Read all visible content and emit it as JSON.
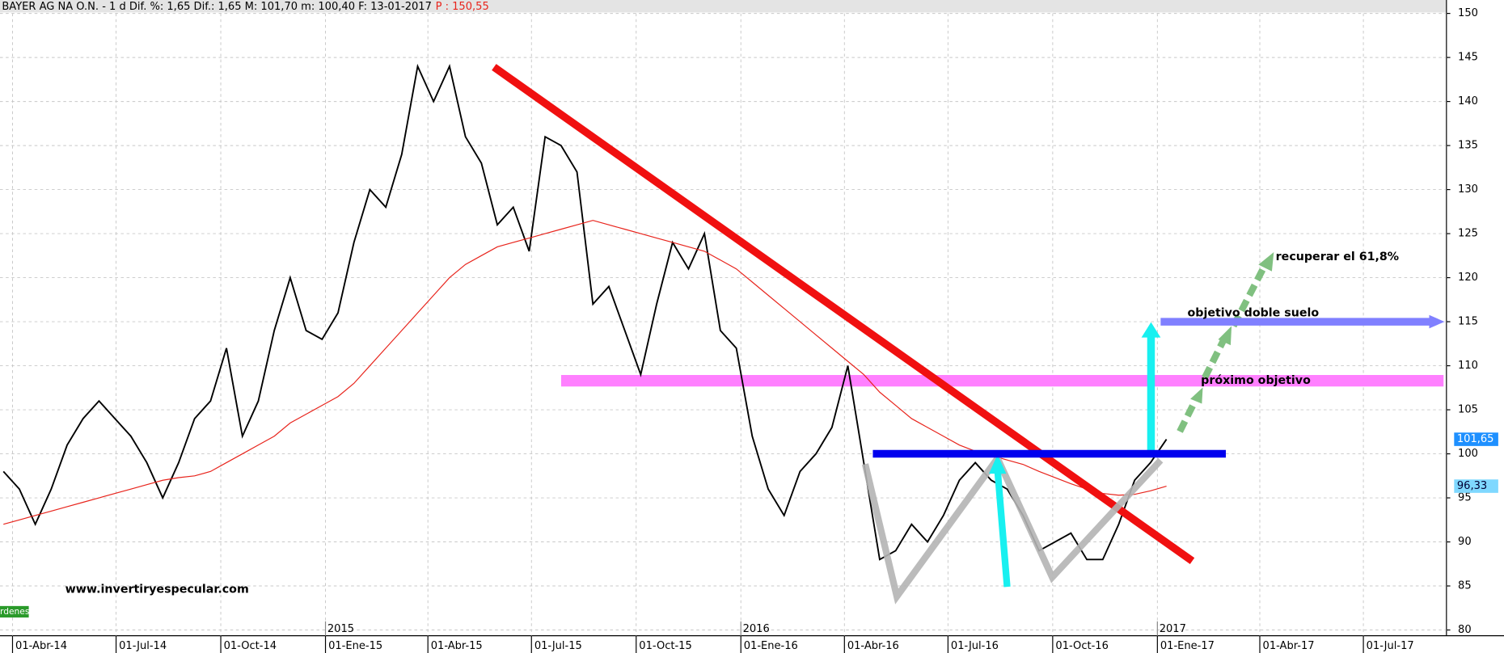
{
  "chart_data": {
    "type": "line",
    "title": "BAYER AG NA O.N. -  1 d Dif. %: 1,65 Dif.: 1,65 M: 101,70 m: 100,40 F: 13-01-2017",
    "subtitle": "P : 150,55",
    "x": [
      "2014-03-24",
      "2014-04-07",
      "2014-04-21",
      "2014-05-05",
      "2014-05-19",
      "2014-06-02",
      "2014-06-16",
      "2014-06-30",
      "2014-07-14",
      "2014-07-28",
      "2014-08-11",
      "2014-08-25",
      "2014-09-08",
      "2014-09-22",
      "2014-10-06",
      "2014-10-20",
      "2014-11-03",
      "2014-11-17",
      "2014-12-01",
      "2014-12-15",
      "2014-12-29",
      "2015-01-12",
      "2015-01-26",
      "2015-02-09",
      "2015-02-23",
      "2015-03-09",
      "2015-03-23",
      "2015-04-06",
      "2015-04-20",
      "2015-05-04",
      "2015-05-18",
      "2015-06-01",
      "2015-06-15",
      "2015-06-29",
      "2015-07-13",
      "2015-07-27",
      "2015-08-10",
      "2015-08-24",
      "2015-09-07",
      "2015-09-21",
      "2015-10-05",
      "2015-10-19",
      "2015-11-02",
      "2015-11-16",
      "2015-11-30",
      "2015-12-14",
      "2015-12-28",
      "2016-01-11",
      "2016-01-25",
      "2016-02-08",
      "2016-02-22",
      "2016-03-07",
      "2016-03-21",
      "2016-04-04",
      "2016-04-18",
      "2016-05-02",
      "2016-05-16",
      "2016-05-30",
      "2016-06-13",
      "2016-06-27",
      "2016-07-11",
      "2016-07-25",
      "2016-08-08",
      "2016-08-22",
      "2016-09-05",
      "2016-09-19",
      "2016-10-03",
      "2016-10-17",
      "2016-10-31",
      "2016-11-14",
      "2016-11-28",
      "2016-12-12",
      "2016-12-26",
      "2017-01-09"
    ],
    "series": [
      {
        "color": "#000000",
        "values": [
          98,
          96,
          92,
          96,
          101,
          104,
          106,
          104,
          102,
          99,
          95,
          99,
          104,
          106,
          112,
          102,
          106,
          114,
          120,
          114,
          113,
          116,
          124,
          130,
          128,
          134,
          144,
          140,
          144,
          136,
          133,
          126,
          128,
          123,
          136,
          135,
          132,
          117,
          119,
          114,
          109,
          117,
          124,
          121,
          125,
          114,
          112,
          102,
          96,
          93,
          98,
          100,
          103,
          110,
          99,
          88,
          89,
          92,
          90,
          93,
          97,
          99,
          97,
          96,
          93,
          89,
          90,
          91,
          88,
          88,
          92,
          97,
          99,
          101.65
        ]
      },
      {
        "color": "#e8241c",
        "values": [
          92,
          92.5,
          93,
          93.5,
          94,
          94.5,
          95,
          95.5,
          96,
          96.5,
          97,
          97.3,
          97.5,
          98,
          99,
          100,
          101,
          102,
          103.5,
          104.5,
          105.5,
          106.5,
          108,
          110,
          112,
          114,
          116,
          118,
          120,
          121.5,
          122.5,
          123.5,
          124,
          124.5,
          125,
          125.5,
          126,
          126.5,
          126,
          125.5,
          125,
          124.5,
          124,
          123.5,
          123,
          122,
          121,
          119.5,
          118,
          116.5,
          115,
          113.5,
          112,
          110.5,
          109,
          107,
          105.5,
          104,
          103,
          102,
          101,
          100.3,
          99.8,
          99.3,
          98.8,
          98,
          97.3,
          96.6,
          96,
          95.5,
          95.3,
          95.4,
          95.8,
          96.33
        ]
      }
    ],
    "xlim": [
      "2014-03-21",
      "2017-09-12"
    ],
    "xticks": [
      {
        "value": "2014-04-01",
        "label": "01-Abr-14"
      },
      {
        "value": "2014-07-01",
        "label": "01-Jul-14"
      },
      {
        "value": "2014-10-01",
        "label": "01-Oct-14"
      },
      {
        "value": "2015-01-01",
        "label": "01-Ene-15"
      },
      {
        "value": "2015-04-01",
        "label": "01-Abr-15"
      },
      {
        "value": "2015-07-01",
        "label": "01-Jul-15"
      },
      {
        "value": "2015-10-01",
        "label": "01-Oct-15"
      },
      {
        "value": "2016-01-01",
        "label": "01-Ene-16"
      },
      {
        "value": "2016-04-01",
        "label": "01-Abr-16"
      },
      {
        "value": "2016-07-01",
        "label": "01-Jul-16"
      },
      {
        "value": "2016-10-01",
        "label": "01-Oct-16"
      },
      {
        "value": "2017-01-01",
        "label": "01-Ene-17"
      },
      {
        "value": "2017-04-01",
        "label": "01-Abr-17"
      },
      {
        "value": "2017-07-01",
        "label": "01-Jul-17"
      }
    ],
    "year_ticks": [
      {
        "value": "2015-01-01",
        "label": "2015"
      },
      {
        "value": "2016-01-01",
        "label": "2016"
      },
      {
        "value": "2017-01-01",
        "label": "2017"
      }
    ],
    "ylim": [
      80,
      150
    ],
    "yticks": [
      80,
      85,
      90,
      95,
      100,
      105,
      110,
      115,
      120,
      125,
      130,
      135,
      140,
      145,
      150
    ],
    "grid": true,
    "price_badges": [
      {
        "value": 101.65,
        "label": "101,65",
        "color": "#1e90ff"
      },
      {
        "value": 96.33,
        "label": "96,33",
        "color": "#7fd8ff"
      }
    ],
    "levels": [
      {
        "value": 108.3,
        "color": "#ff80ff",
        "label": "próximo objetivo"
      },
      {
        "value": 100,
        "color": "#0000ee"
      },
      {
        "value": 115,
        "color": "#8080ff",
        "label": "objetivo doble suelo"
      }
    ],
    "annotations": [
      "recuperar el 61,8%",
      "www.invertiryespecular.com",
      "rdenes"
    ]
  }
}
